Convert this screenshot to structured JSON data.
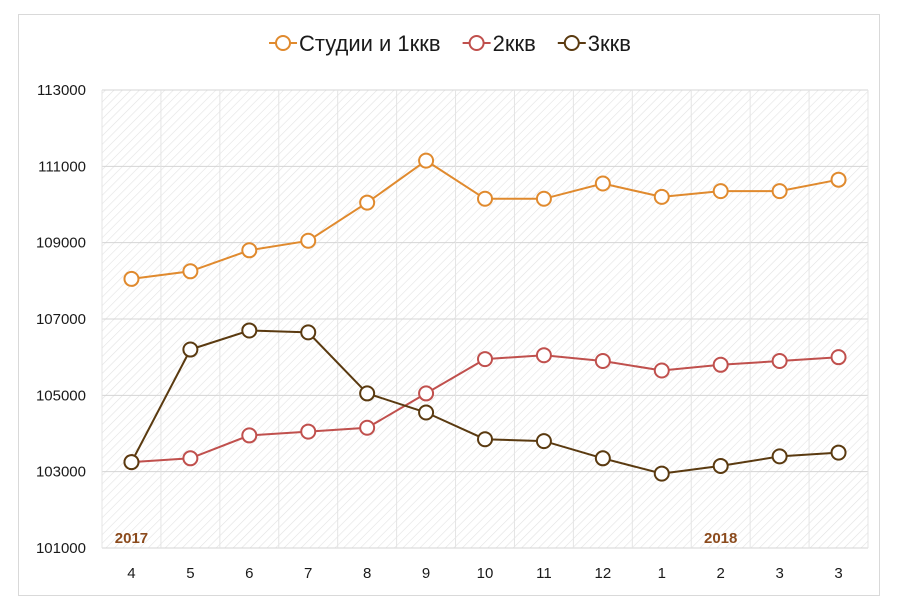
{
  "chart_data": {
    "type": "line",
    "title": "",
    "xlabel": "",
    "ylabel": "",
    "categories": [
      "4",
      "5",
      "6",
      "7",
      "8",
      "9",
      "10",
      "11",
      "12",
      "1",
      "2",
      "3",
      "3"
    ],
    "year_labels": [
      {
        "text": "2017",
        "category_index": 0
      },
      {
        "text": "2018",
        "category_index": 10
      }
    ],
    "ylim": [
      101000,
      113000
    ],
    "yticks": [
      101000,
      103000,
      105000,
      107000,
      109000,
      111000,
      113000
    ],
    "ytick_labels": [
      "101000",
      "103000",
      "105000",
      "107000",
      "109000",
      "111000",
      "113000"
    ],
    "grid": true,
    "plot_area_pattern": "diagonal hatch",
    "legend_position": "top",
    "series": [
      {
        "name": "Студии и 1ккв",
        "color": "#e08a2e",
        "values": [
          108050,
          108250,
          108800,
          109050,
          110050,
          111150,
          110150,
          110150,
          110550,
          110200,
          110350,
          110350,
          110650
        ]
      },
      {
        "name": "2ккв",
        "color": "#c0504d",
        "values": [
          103250,
          103350,
          103950,
          104050,
          104150,
          105050,
          105950,
          106050,
          105900,
          105650,
          105800,
          105900,
          106000
        ]
      },
      {
        "name": "3ккв",
        "color": "#5a3a10",
        "values": [
          103250,
          106200,
          106700,
          106650,
          105050,
          104550,
          103850,
          103800,
          103350,
          102950,
          103150,
          103400,
          103500
        ]
      }
    ]
  }
}
